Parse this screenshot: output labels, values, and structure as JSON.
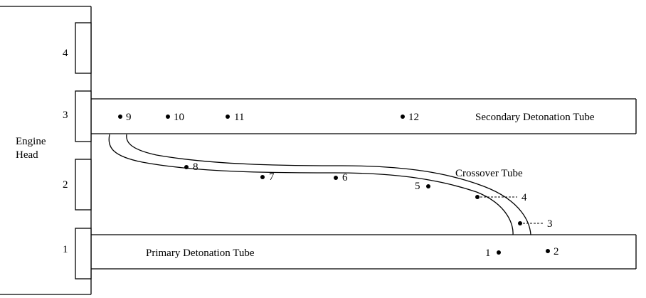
{
  "engine_head": {
    "label_line1": "Engine",
    "label_line2": "Head"
  },
  "slots": [
    {
      "id": "1",
      "label": "1"
    },
    {
      "id": "2",
      "label": "2"
    },
    {
      "id": "3",
      "label": "3"
    },
    {
      "id": "4",
      "label": "4"
    }
  ],
  "tubes": {
    "primary": "Primary Detonation Tube",
    "secondary": "Secondary Detonation Tube",
    "crossover": "Crossover Tube"
  },
  "points": [
    {
      "id": "1",
      "label": "1"
    },
    {
      "id": "2",
      "label": "2"
    },
    {
      "id": "3",
      "label": "3"
    },
    {
      "id": "4",
      "label": "4"
    },
    {
      "id": "5",
      "label": "5"
    },
    {
      "id": "6",
      "label": "6"
    },
    {
      "id": "7",
      "label": "7"
    },
    {
      "id": "8",
      "label": "8"
    },
    {
      "id": "9",
      "label": "9"
    },
    {
      "id": "10",
      "label": "10"
    },
    {
      "id": "11",
      "label": "11"
    },
    {
      "id": "12",
      "label": "12"
    }
  ],
  "colors": {
    "line": "#000000",
    "background": "#ffffff"
  }
}
